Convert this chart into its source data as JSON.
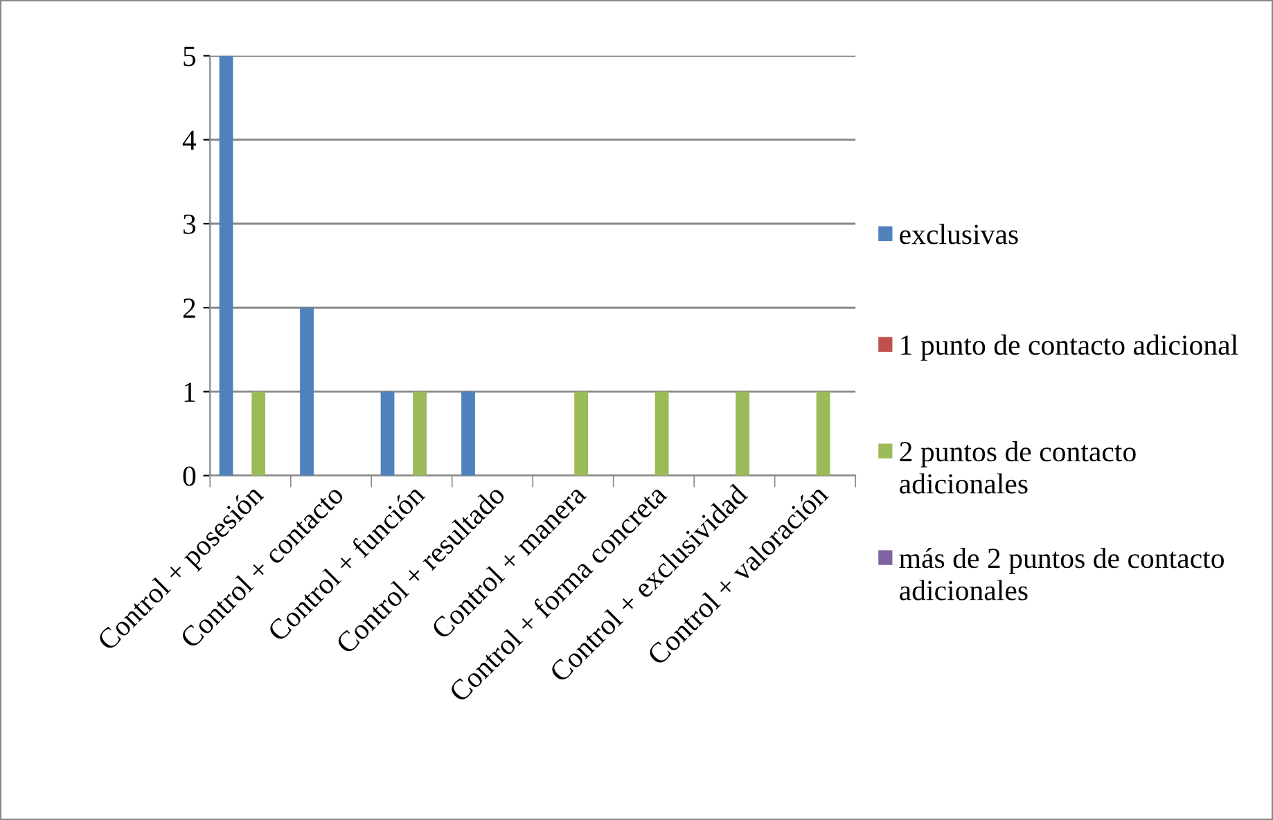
{
  "chart_data": {
    "type": "bar",
    "categories": [
      "Control + posesión",
      "Control + contacto",
      "Control + función",
      "Control + resultado",
      "Control + manera",
      "Control + forma concreta",
      "Control + exclusividad",
      "Control + valoración"
    ],
    "series": [
      {
        "name": "exclusivas",
        "color": "#4f81bd",
        "values": [
          5,
          2,
          1,
          1,
          0,
          0,
          0,
          0
        ]
      },
      {
        "name": "1 punto de contacto adicional",
        "color": "#c0504d",
        "values": [
          0,
          0,
          0,
          0,
          0,
          0,
          0,
          0
        ]
      },
      {
        "name": "2 puntos de contacto adicionales",
        "color": "#9bbb59",
        "values": [
          1,
          0,
          1,
          0,
          1,
          1,
          1,
          1
        ]
      },
      {
        "name": "más de 2 puntos de contacto adicionales",
        "color": "#8064a2",
        "values": [
          0,
          0,
          0,
          0,
          0,
          0,
          0,
          0
        ]
      }
    ],
    "ylim": [
      0,
      5
    ],
    "yticks": [
      0,
      1,
      2,
      3,
      4,
      5
    ],
    "grid": "y",
    "legend": "right"
  }
}
